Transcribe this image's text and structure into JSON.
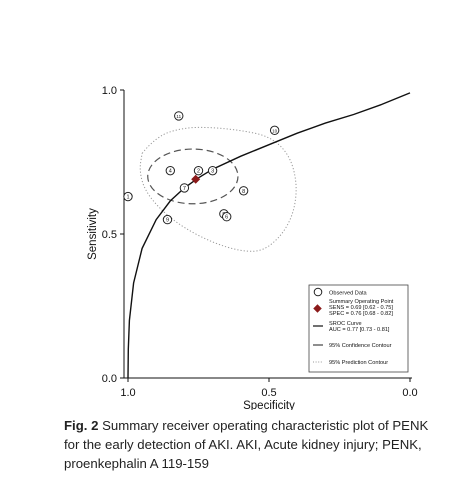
{
  "chart_data": {
    "type": "scatter",
    "xlabel": "Specificity",
    "ylabel": "Sensitivity",
    "xlim": [
      1.0,
      0.0
    ],
    "ylim": [
      0.0,
      1.0
    ],
    "x_ticks": [
      "1.0",
      "0.5",
      "0.0"
    ],
    "y_ticks": [
      "0.0",
      "0.5",
      "1.0"
    ],
    "studies": [
      {
        "label": "1",
        "specificity": 1.0,
        "sensitivity": 0.63
      },
      {
        "label": "2",
        "specificity": 0.75,
        "sensitivity": 0.72
      },
      {
        "label": "3",
        "specificity": 0.7,
        "sensitivity": 0.72
      },
      {
        "label": "4",
        "specificity": 0.85,
        "sensitivity": 0.72
      },
      {
        "label": "5",
        "specificity": 0.66,
        "sensitivity": 0.57
      },
      {
        "label": "6",
        "specificity": 0.65,
        "sensitivity": 0.56
      },
      {
        "label": "7",
        "specificity": 0.8,
        "sensitivity": 0.66
      },
      {
        "label": "8",
        "specificity": 0.59,
        "sensitivity": 0.65
      },
      {
        "label": "9",
        "specificity": 0.86,
        "sensitivity": 0.55
      },
      {
        "label": "10",
        "specificity": 0.48,
        "sensitivity": 0.86
      },
      {
        "label": "11",
        "specificity": 0.82,
        "sensitivity": 0.91
      }
    ],
    "summary_point": {
      "specificity": 0.76,
      "sensitivity": 0.69
    },
    "sroc_curve": {
      "specificity": [
        1.0,
        0.999,
        0.995,
        0.98,
        0.95,
        0.9,
        0.85,
        0.8,
        0.75,
        0.7,
        0.6,
        0.5,
        0.4,
        0.3,
        0.2,
        0.1,
        0.05,
        0.0
      ],
      "sensitivity": [
        0.0,
        0.1,
        0.2,
        0.33,
        0.45,
        0.55,
        0.615,
        0.66,
        0.695,
        0.725,
        0.77,
        0.81,
        0.85,
        0.885,
        0.915,
        0.95,
        0.97,
        0.99
      ]
    },
    "confidence_contour": {
      "center_specificity": 0.77,
      "center_sensitivity": 0.7,
      "radius_specificity": 0.16,
      "radius_sensitivity": 0.095
    },
    "prediction_contour": {
      "specificity": [
        0.95,
        0.9,
        0.8,
        0.7,
        0.6,
        0.5,
        0.43,
        0.4,
        0.41,
        0.45,
        0.52,
        0.6,
        0.7,
        0.8,
        0.88,
        0.94,
        0.96,
        0.95
      ],
      "sensitivity": [
        0.78,
        0.84,
        0.87,
        0.87,
        0.86,
        0.84,
        0.78,
        0.68,
        0.58,
        0.5,
        0.44,
        0.44,
        0.47,
        0.52,
        0.58,
        0.65,
        0.72,
        0.78
      ]
    },
    "legend": {
      "placement": "bottom-right",
      "entries": [
        {
          "lines": [
            "Observed Data"
          ]
        },
        {
          "lines": [
            "Summary Operating Point",
            "SENS = 0.69 [0.62 - 0.75]",
            "SPEC = 0.76 [0.68 - 0.82]"
          ]
        },
        {
          "lines": [
            "SROC Curve",
            "AUC = 0.77 [0.73 - 0.81]"
          ]
        },
        {
          "lines": [
            "95% Confidence Contour"
          ]
        },
        {
          "lines": [
            "95% Prediction Contour"
          ]
        }
      ]
    },
    "colors": {
      "summary": "#8b1a1a",
      "line": "#111111",
      "dotted": "#999999",
      "dashed": "#555555"
    }
  },
  "caption": {
    "label": "Fig. 2",
    "text": "Summary receiver operating characteristic plot of PENK for the early detection of AKI. AKI, Acute kidney injury; PENK, proenkephalin A 119-159"
  }
}
